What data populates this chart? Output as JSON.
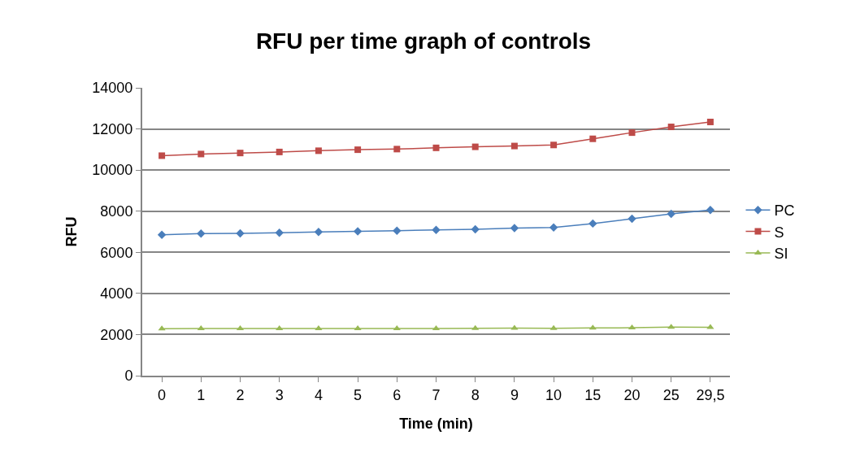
{
  "chart_data": {
    "type": "line",
    "title": "RFU per time graph of controls",
    "xlabel": "Time (min)",
    "ylabel": "RFU",
    "categories": [
      "0",
      "1",
      "2",
      "3",
      "4",
      "5",
      "6",
      "7",
      "8",
      "9",
      "10",
      "15",
      "20",
      "25",
      "29,5"
    ],
    "series": [
      {
        "name": "PC",
        "color": "#4a7ebb",
        "marker": "diamond",
        "values": [
          6850,
          6910,
          6920,
          6950,
          6990,
          7020,
          7050,
          7090,
          7120,
          7180,
          7210,
          7400,
          7630,
          7870,
          8060
        ]
      },
      {
        "name": "S",
        "color": "#be4b48",
        "marker": "square",
        "values": [
          10700,
          10780,
          10830,
          10880,
          10940,
          10990,
          11020,
          11080,
          11130,
          11170,
          11220,
          11520,
          11820,
          12100,
          12340
        ]
      },
      {
        "name": "SI",
        "color": "#98b954",
        "marker": "triangle",
        "values": [
          2280,
          2290,
          2290,
          2290,
          2290,
          2290,
          2290,
          2290,
          2300,
          2310,
          2300,
          2320,
          2330,
          2360,
          2350
        ]
      }
    ],
    "ylim": [
      0,
      14000
    ],
    "yticks": [
      0,
      2000,
      4000,
      6000,
      8000,
      10000,
      12000,
      14000
    ],
    "grid": "y",
    "legend": "right",
    "line_style": "solid"
  }
}
